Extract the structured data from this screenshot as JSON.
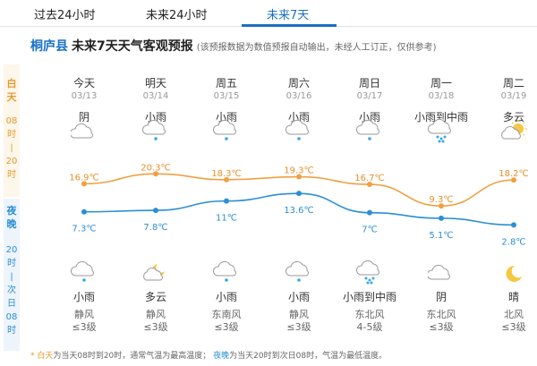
{
  "tabs": [
    {
      "label": "过去24小时"
    },
    {
      "label": "未来24小时"
    },
    {
      "label": "未来7天"
    }
  ],
  "header": {
    "county": "桐庐县",
    "title": "未来7天天气客观预报",
    "note": "(该预报数据为数值预报自动输出，未经人工订正，仅供参考)"
  },
  "sidebar": {
    "day": {
      "line1": "白",
      "line2": "天",
      "r1": "08",
      "r2": "时",
      "r3": "|",
      "r4": "20",
      "r5": "时"
    },
    "night": {
      "line1": "夜",
      "line2": "晚",
      "r1": "20",
      "r2": "时",
      "r3": "|",
      "r4": "次",
      "r5": "日",
      "r6": "08",
      "r7": "时"
    }
  },
  "days": [
    {
      "week": "今天",
      "date": "03/13",
      "day_weather": "阴",
      "day_icon": "overcast-icon",
      "night_weather": "小雨",
      "night_icon": "light-rain-icon",
      "wind_dir": "静风",
      "wind_level": "≤3级"
    },
    {
      "week": "明天",
      "date": "03/14",
      "day_weather": "小雨",
      "day_icon": "light-rain-icon",
      "night_weather": "多云",
      "night_icon": "partly-cloudy-night-icon",
      "wind_dir": "静风",
      "wind_level": "≤3级"
    },
    {
      "week": "周五",
      "date": "03/15",
      "day_weather": "小雨",
      "day_icon": "light-rain-icon",
      "night_weather": "小雨",
      "night_icon": "light-rain-icon",
      "wind_dir": "东南风",
      "wind_level": "≤3级"
    },
    {
      "week": "周六",
      "date": "03/16",
      "day_weather": "小雨",
      "day_icon": "light-rain-icon",
      "night_weather": "小雨",
      "night_icon": "light-rain-icon",
      "wind_dir": "静风",
      "wind_level": "≤3级"
    },
    {
      "week": "周日",
      "date": "03/17",
      "day_weather": "小雨",
      "day_icon": "light-rain-icon",
      "night_weather": "小雨到中雨",
      "night_icon": "moderate-rain-icon",
      "wind_dir": "东北风",
      "wind_level": "4-5级"
    },
    {
      "week": "周一",
      "date": "03/18",
      "day_weather": "小雨到中雨",
      "day_icon": "moderate-rain-icon",
      "night_weather": "阴",
      "night_icon": "overcast-icon",
      "wind_dir": "东北风",
      "wind_level": "≤3级"
    },
    {
      "week": "周二",
      "date": "03/19",
      "day_weather": "多云",
      "day_icon": "partly-cloudy-icon",
      "night_weather": "晴",
      "night_icon": "clear-night-icon",
      "wind_dir": "北风",
      "wind_level": "≤3级"
    }
  ],
  "temps": {
    "high": [
      16.9,
      20.3,
      18.3,
      19.3,
      16.7,
      9.3,
      18.2
    ],
    "low": [
      7.3,
      7.8,
      11,
      13.6,
      7,
      5.1,
      2.8
    ],
    "high_labels": [
      "16.9℃",
      "20.3℃",
      "18.3℃",
      "19.3℃",
      "16.7℃",
      "9.3℃",
      "18.2℃"
    ],
    "low_labels": [
      "7.3℃",
      "7.8℃",
      "11℃",
      "13.6℃",
      "7℃",
      "5.1℃",
      "2.8℃"
    ],
    "high_color": "#f0a040",
    "low_color": "#2a8fd6"
  },
  "footer": {
    "day_term": "* 白天",
    "day_desc": "为当天08时到20时，通常气温为最高温度；",
    "night_term": "夜晚",
    "night_desc": "为当天20时到次日08时，气温为最低温度。"
  }
}
